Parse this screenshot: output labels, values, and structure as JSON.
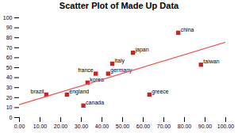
{
  "chart_data": {
    "type": "scatter",
    "title": "Scatter Plot of Made Up Data",
    "xlim": [
      0,
      100
    ],
    "ylim": [
      0,
      100
    ],
    "xticks": [
      {
        "value": 0,
        "label": "0.00"
      },
      {
        "value": 10,
        "label": "10.00"
      },
      {
        "value": 20,
        "label": "20.00"
      },
      {
        "value": 30,
        "label": "30.00"
      },
      {
        "value": 40,
        "label": "40.00"
      },
      {
        "value": 50,
        "label": "50.00"
      },
      {
        "value": 60,
        "label": "60.00"
      },
      {
        "value": 70,
        "label": "70.00"
      },
      {
        "value": 80,
        "label": "80.00"
      },
      {
        "value": 90,
        "label": "90.00"
      },
      {
        "value": 100,
        "label": "100.00"
      }
    ],
    "yticks": [
      0,
      10,
      20,
      30,
      40,
      50,
      60,
      70,
      80,
      90,
      100
    ],
    "grid": false,
    "series": [
      {
        "type": "scatter",
        "marker": "square",
        "color": "#cc2222",
        "x": [
          13,
          23,
          31,
          33,
          37,
          43,
          45,
          55,
          63,
          77,
          88
        ],
        "values": [
          23,
          23,
          12,
          35,
          44,
          44,
          54,
          65,
          23,
          85,
          53
        ],
        "labels": [
          "brazil",
          "england",
          "canada",
          "korea",
          "france",
          "germany",
          "italy",
          "japan",
          "greece",
          "china",
          "taiwan"
        ]
      },
      {
        "type": "line",
        "color": "#ee5555",
        "x": [
          0,
          100
        ],
        "values": [
          13.0485,
          75.5419
        ]
      }
    ]
  }
}
